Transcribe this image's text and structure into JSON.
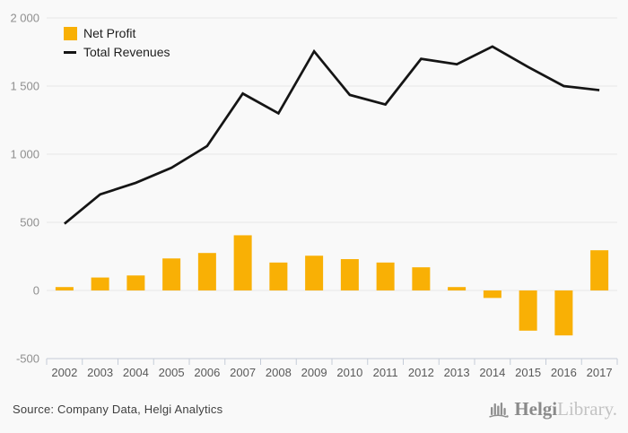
{
  "chart_data": {
    "type": "combo",
    "categories": [
      "2002",
      "2003",
      "2004",
      "2005",
      "2006",
      "2007",
      "2008",
      "2009",
      "2010",
      "2011",
      "2012",
      "2013",
      "2014",
      "2015",
      "2016",
      "2017"
    ],
    "series": [
      {
        "name": "Net Profit",
        "type": "bar",
        "values": [
          25,
          95,
          110,
          235,
          275,
          405,
          205,
          255,
          230,
          205,
          170,
          25,
          -55,
          -295,
          -330,
          295
        ]
      },
      {
        "name": "Total Revenues",
        "type": "line",
        "values": [
          490,
          705,
          790,
          900,
          1060,
          1445,
          1300,
          1755,
          1435,
          1365,
          1700,
          1660,
          1790,
          1640,
          1500,
          1470
        ]
      }
    ],
    "title": "",
    "xlabel": "",
    "ylabel": "",
    "ylim": [
      -500,
      2000
    ],
    "yticks": [
      {
        "value": 2000,
        "label": "2 000"
      },
      {
        "value": 1500,
        "label": "1 500"
      },
      {
        "value": 1000,
        "label": "1 000"
      },
      {
        "value": 500,
        "label": "500"
      },
      {
        "value": 0,
        "label": "0"
      },
      {
        "value": -500,
        "label": "-500"
      }
    ],
    "grid": "horizontal",
    "legend_position": "top-left"
  },
  "legend": {
    "items": [
      {
        "label": "Net Profit",
        "swatch": "square",
        "color": "#F9B005"
      },
      {
        "label": "Total Revenues",
        "swatch": "line",
        "color": "#151515"
      }
    ]
  },
  "footer": {
    "source": "Source: Company Data, Helgi Analytics",
    "logo": {
      "icon": "bar-chart-logo-icon",
      "primary": "Helgi",
      "secondary": "Library."
    }
  },
  "colors": {
    "bar": "#F9B005",
    "line": "#151515",
    "background": "#f9f9f9",
    "gridline": "#e8e8e8",
    "axis": "#c5ccd8",
    "y_label": "#8f8f8f",
    "x_label": "#595959",
    "logo_gray": "#8f8f8f"
  }
}
